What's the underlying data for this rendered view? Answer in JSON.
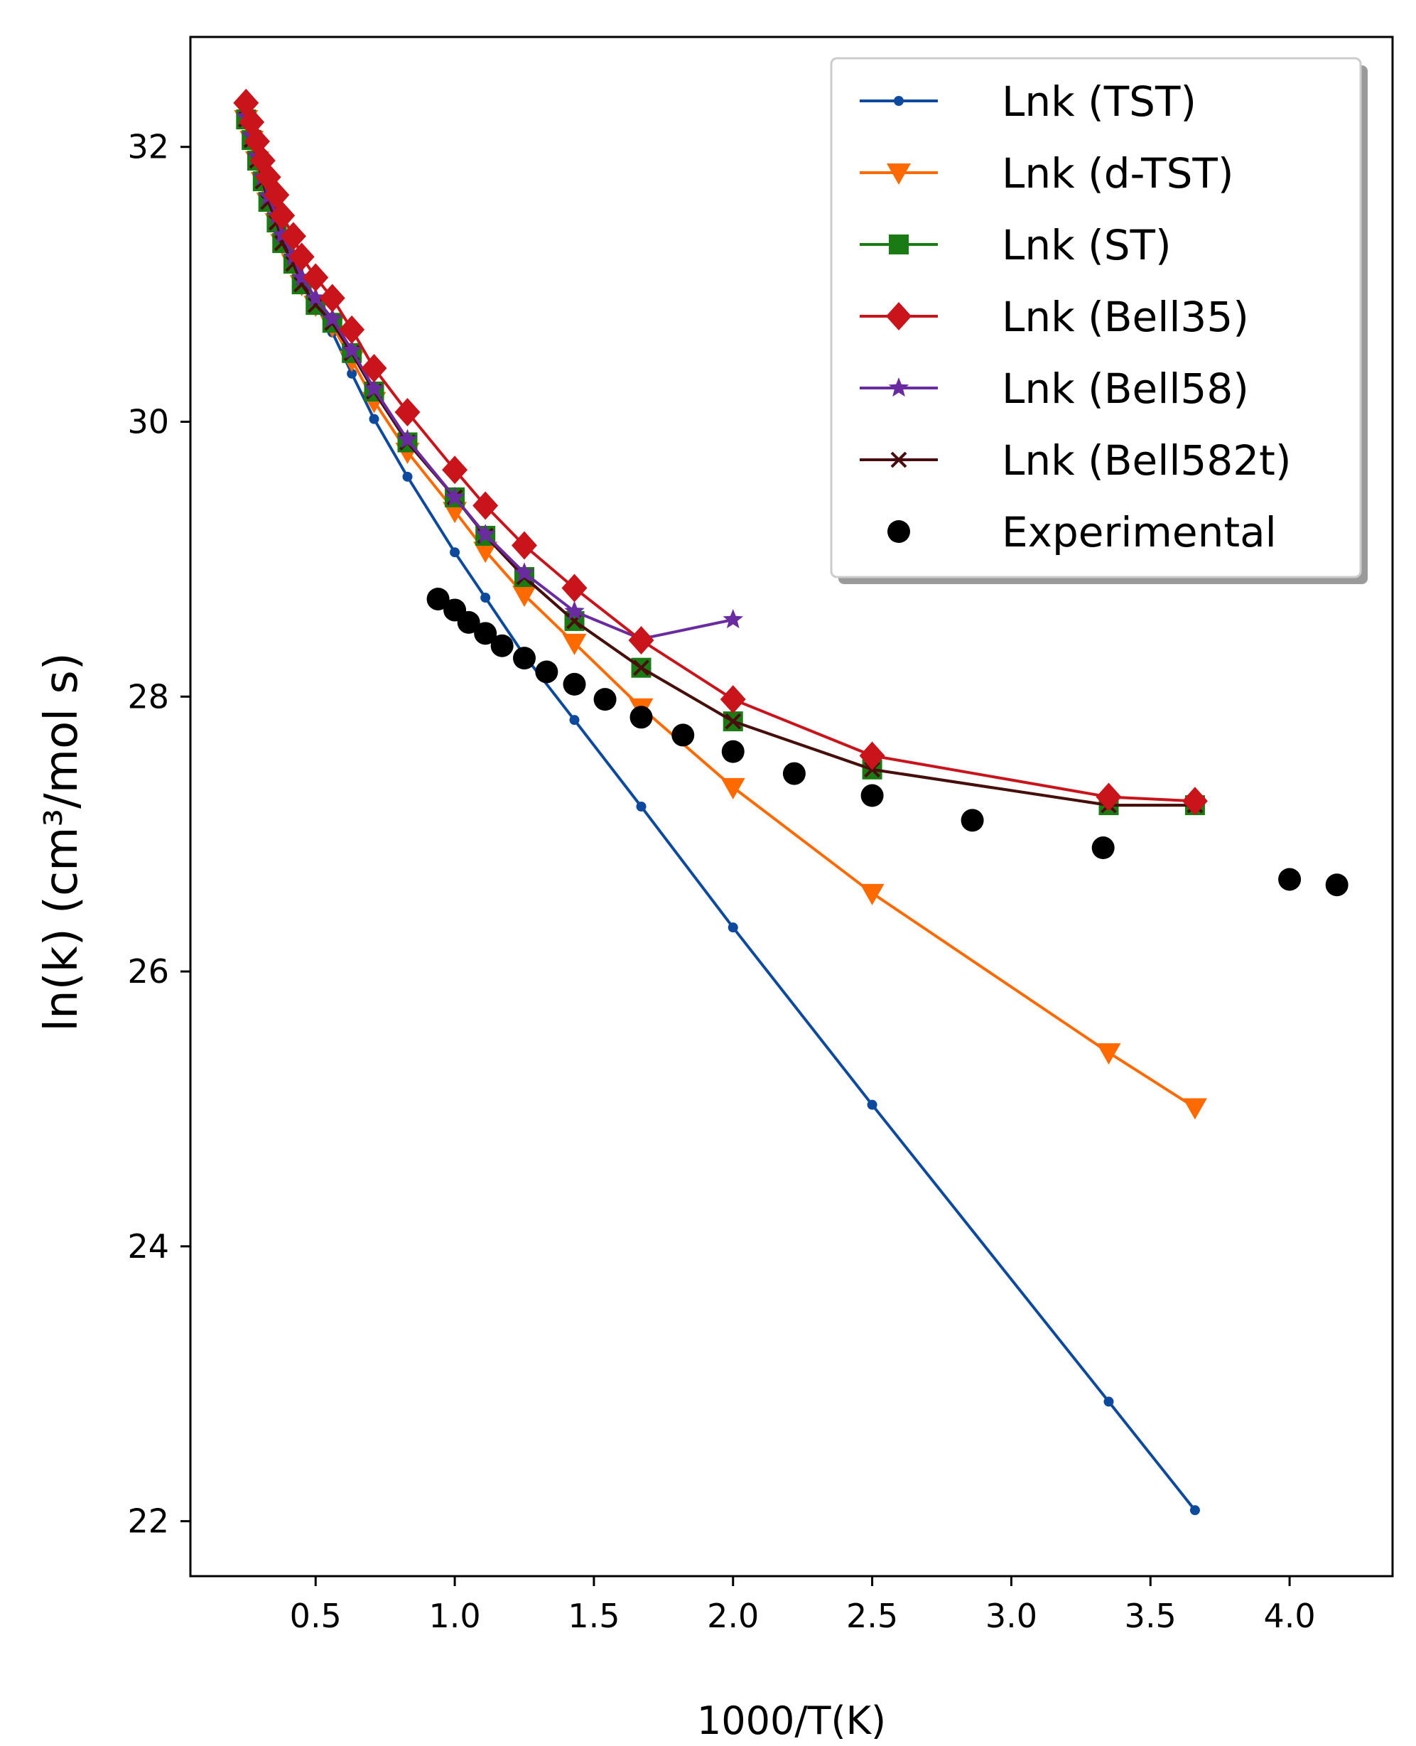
{
  "chart_data": {
    "type": "line",
    "xlabel": "1000/T(K)",
    "ylabel": "ln(k) (cm³/mol s)",
    "xlim": [
      0.05,
      4.37
    ],
    "ylim": [
      21.6,
      32.8
    ],
    "xticks": [
      0.5,
      1.0,
      1.5,
      2.0,
      2.5,
      3.0,
      3.5,
      4.0
    ],
    "yticks": [
      22,
      24,
      26,
      28,
      30,
      32
    ],
    "xtick_labels": [
      "0.5",
      "1.0",
      "1.5",
      "2.0",
      "2.5",
      "3.0",
      "3.5",
      "4.0"
    ],
    "ytick_labels": [
      "22",
      "24",
      "26",
      "28",
      "30",
      "32"
    ],
    "legend_position": "top-right",
    "series": [
      {
        "name": "Lnk (TST)",
        "color": "#0d4a9e",
        "marker": "dot",
        "x": [
          0.25,
          0.27,
          0.29,
          0.31,
          0.33,
          0.36,
          0.38,
          0.42,
          0.45,
          0.5,
          0.56,
          0.63,
          0.71,
          0.83,
          1.0,
          1.11,
          1.25,
          1.43,
          1.67,
          2.0,
          2.5,
          3.35,
          3.66
        ],
        "y": [
          32.2,
          32.05,
          31.9,
          31.75,
          31.6,
          31.45,
          31.3,
          31.15,
          31.0,
          30.85,
          30.65,
          30.35,
          30.02,
          29.6,
          29.05,
          28.72,
          28.3,
          27.83,
          27.2,
          26.32,
          25.03,
          22.87,
          22.08
        ]
      },
      {
        "name": "Lnk (d-TST)",
        "color": "#ff6a00",
        "marker": "triangle-down",
        "x": [
          0.25,
          0.27,
          0.29,
          0.31,
          0.33,
          0.36,
          0.38,
          0.42,
          0.45,
          0.5,
          0.56,
          0.63,
          0.71,
          0.83,
          1.0,
          1.11,
          1.25,
          1.43,
          1.67,
          2.0,
          2.5,
          3.35,
          3.66
        ],
        "y": [
          32.2,
          32.05,
          31.9,
          31.75,
          31.6,
          31.45,
          31.3,
          31.15,
          31.0,
          30.85,
          30.7,
          30.45,
          30.15,
          29.78,
          29.35,
          29.06,
          28.74,
          28.39,
          27.92,
          27.34,
          26.57,
          25.41,
          25.01
        ]
      },
      {
        "name": "Lnk (ST)",
        "color": "#1a7a14",
        "marker": "square",
        "x": [
          0.25,
          0.27,
          0.29,
          0.31,
          0.33,
          0.36,
          0.38,
          0.42,
          0.45,
          0.5,
          0.56,
          0.63,
          0.71,
          0.83,
          1.0,
          1.11,
          1.25,
          1.43,
          1.67,
          2.0,
          2.5,
          3.35,
          3.66
        ],
        "y": [
          32.2,
          32.05,
          31.9,
          31.75,
          31.6,
          31.45,
          31.3,
          31.15,
          31.0,
          30.85,
          30.72,
          30.5,
          30.22,
          29.85,
          29.45,
          29.17,
          28.87,
          28.55,
          28.21,
          27.82,
          27.47,
          27.21,
          27.21
        ]
      },
      {
        "name": "Lnk (Bell35)",
        "color": "#c8141a",
        "marker": "diamond",
        "x": [
          0.25,
          0.27,
          0.29,
          0.31,
          0.33,
          0.36,
          0.38,
          0.42,
          0.45,
          0.5,
          0.56,
          0.63,
          0.71,
          0.83,
          1.0,
          1.11,
          1.25,
          1.43,
          1.67,
          2.0,
          2.5,
          3.35,
          3.66
        ],
        "y": [
          32.32,
          32.18,
          32.04,
          31.9,
          31.78,
          31.65,
          31.5,
          31.35,
          31.2,
          31.05,
          30.9,
          30.67,
          30.39,
          30.07,
          29.65,
          29.39,
          29.1,
          28.79,
          28.41,
          27.98,
          27.57,
          27.27,
          27.24
        ]
      },
      {
        "name": "Lnk (Bell58)",
        "color": "#6a2aa0",
        "marker": "star",
        "x": [
          0.25,
          0.27,
          0.29,
          0.31,
          0.33,
          0.36,
          0.38,
          0.42,
          0.45,
          0.5,
          0.56,
          0.63,
          0.71,
          0.83,
          1.0,
          1.11,
          1.25,
          1.43,
          1.67,
          2.0
        ],
        "y": [
          32.22,
          32.08,
          31.93,
          31.78,
          31.64,
          31.5,
          31.36,
          31.2,
          31.05,
          30.9,
          30.75,
          30.52,
          30.24,
          29.87,
          29.45,
          29.18,
          28.9,
          28.62,
          28.42,
          28.56
        ]
      },
      {
        "name": "Lnk (Bell582t)",
        "color": "#4a0d0d",
        "marker": "x",
        "x": [
          0.25,
          0.27,
          0.29,
          0.31,
          0.33,
          0.36,
          0.38,
          0.42,
          0.45,
          0.5,
          0.56,
          0.63,
          0.71,
          0.83,
          1.0,
          1.11,
          1.25,
          1.43,
          1.67,
          2.0,
          2.5,
          3.35,
          3.66
        ],
        "y": [
          32.2,
          32.05,
          31.9,
          31.75,
          31.6,
          31.45,
          31.3,
          31.15,
          31.0,
          30.85,
          30.72,
          30.5,
          30.22,
          29.85,
          29.45,
          29.17,
          28.87,
          28.55,
          28.21,
          27.82,
          27.47,
          27.21,
          27.21
        ]
      },
      {
        "name": "Experimental",
        "color": "#000000",
        "marker": "circle",
        "scatter": true,
        "x": [
          0.94,
          1.0,
          1.05,
          1.11,
          1.17,
          1.25,
          1.33,
          1.43,
          1.54,
          1.67,
          1.82,
          2.0,
          2.22,
          2.5,
          2.86,
          3.33,
          4.0,
          4.17
        ],
        "y": [
          28.71,
          28.63,
          28.54,
          28.46,
          28.37,
          28.28,
          28.18,
          28.09,
          27.98,
          27.85,
          27.72,
          27.6,
          27.44,
          27.28,
          27.1,
          26.9,
          26.67,
          26.63
        ]
      }
    ]
  }
}
